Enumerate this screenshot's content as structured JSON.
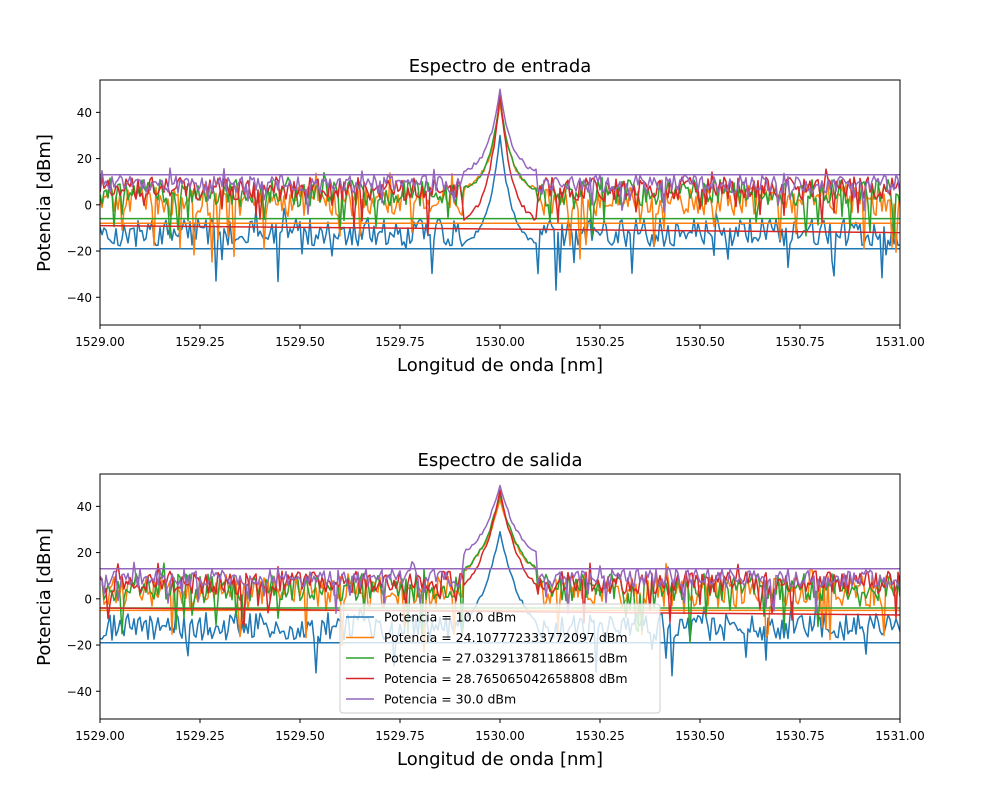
{
  "chart_data": [
    {
      "type": "line",
      "title": "Espectro de entrada",
      "xlabel": "Longitud de onda [nm]",
      "ylabel": "Potencia [dBm]",
      "xlim": [
        1529.0,
        1531.0
      ],
      "ylim": [
        -52,
        54
      ],
      "xticks": [
        "1529.00",
        "1529.25",
        "1529.50",
        "1529.75",
        "1530.00",
        "1530.25",
        "1530.50",
        "1530.75",
        "1531.00"
      ],
      "yticks": [
        "−40",
        "−20",
        "0",
        "20",
        "40"
      ],
      "grid": false,
      "legend": null,
      "series": [
        {
          "name": "Potencia = 10.0 dBm",
          "color": "#1f77b4",
          "noise_floor": -19,
          "noise_mean": -12,
          "noise_spread": 6,
          "peak": 30,
          "plateau": -19
        },
        {
          "name": "Potencia = 24.107772333772097 dBm",
          "color": "#ff7f0e",
          "noise_floor": -8,
          "noise_mean": 2,
          "noise_spread": 7,
          "peak": 44,
          "plateau": 5
        },
        {
          "name": "Potencia = 27.032913781186615 dBm",
          "color": "#2ca02c",
          "noise_floor": -6,
          "noise_mean": 5,
          "noise_spread": 6,
          "peak": 46,
          "plateau": 5
        },
        {
          "name": "Potencia = 28.765065042658808 dBm",
          "color": "#d62728",
          "noise_floor": -9,
          "noise_mean": 7,
          "noise_spread": 5,
          "peak": 48,
          "plateau": -9
        },
        {
          "name": "Potencia = 30.0 dBm",
          "color": "#9467bd",
          "noise_floor": 13,
          "noise_mean": 9,
          "noise_spread": 4,
          "peak": 50,
          "plateau": 13
        }
      ]
    },
    {
      "type": "line",
      "title": "Espectro de salida",
      "xlabel": "Longitud de onda [nm]",
      "ylabel": "Potencia [dBm]",
      "xlim": [
        1529.0,
        1531.0
      ],
      "ylim": [
        -52,
        54
      ],
      "xticks": [
        "1529.00",
        "1529.25",
        "1529.50",
        "1529.75",
        "1530.00",
        "1530.25",
        "1530.50",
        "1530.75",
        "1531.00"
      ],
      "yticks": [
        "−40",
        "−20",
        "0",
        "20",
        "40"
      ],
      "grid": false,
      "legend": "lower center",
      "series": [
        {
          "name": "Potencia = 10.0 dBm",
          "color": "#1f77b4",
          "noise_floor": -19,
          "noise_mean": -12,
          "noise_spread": 6,
          "peak": 29,
          "plateau": -19
        },
        {
          "name": "Potencia = 24.107772333772097 dBm",
          "color": "#ff7f0e",
          "noise_floor": -5,
          "noise_mean": 3,
          "noise_spread": 7,
          "peak": 43,
          "plateau": 5
        },
        {
          "name": "Potencia = 27.032913781186615 dBm",
          "color": "#2ca02c",
          "noise_floor": -4,
          "noise_mean": 5,
          "noise_spread": 6,
          "peak": 45,
          "plateau": 5
        },
        {
          "name": "Potencia = 28.765065042658808 dBm",
          "color": "#d62728",
          "noise_floor": -4,
          "noise_mean": 7,
          "noise_spread": 5,
          "peak": 47,
          "plateau": -4
        },
        {
          "name": "Potencia = 30.0 dBm",
          "color": "#9467bd",
          "noise_floor": 13,
          "noise_mean": 9,
          "noise_spread": 4,
          "peak": 49,
          "plateau": 13
        }
      ]
    }
  ]
}
